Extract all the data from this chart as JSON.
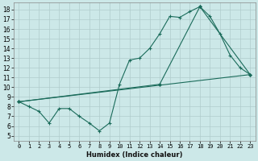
{
  "title": "",
  "xlabel": "Humidex (Indice chaleur)",
  "ylabel": "",
  "bg_color": "#cce8e8",
  "grid_color": "#b0cccc",
  "line_color": "#1a6b5a",
  "xlim": [
    -0.5,
    23.5
  ],
  "ylim": [
    4.5,
    18.7
  ],
  "xticks": [
    0,
    1,
    2,
    3,
    4,
    5,
    6,
    7,
    8,
    9,
    10,
    11,
    12,
    13,
    14,
    15,
    16,
    17,
    18,
    19,
    20,
    21,
    22,
    23
  ],
  "yticks": [
    5,
    6,
    7,
    8,
    9,
    10,
    11,
    12,
    13,
    14,
    15,
    16,
    17,
    18
  ],
  "series_main": {
    "x": [
      0,
      1,
      2,
      3,
      4,
      5,
      6,
      7,
      8,
      9,
      10,
      11,
      12,
      13,
      14,
      15,
      16,
      17,
      18,
      19,
      20,
      21,
      22,
      23
    ],
    "y": [
      8.5,
      8.0,
      7.5,
      6.3,
      7.8,
      7.8,
      7.0,
      6.3,
      5.5,
      6.3,
      10.3,
      12.8,
      13.0,
      14.0,
      15.5,
      17.3,
      17.2,
      17.8,
      18.3,
      17.3,
      15.5,
      13.3,
      12.0,
      11.3
    ]
  },
  "series_straight": {
    "x": [
      0,
      23
    ],
    "y": [
      8.5,
      11.3
    ]
  },
  "series_triangle": {
    "x": [
      0,
      14,
      18,
      23
    ],
    "y": [
      8.5,
      10.3,
      18.3,
      11.3
    ]
  }
}
